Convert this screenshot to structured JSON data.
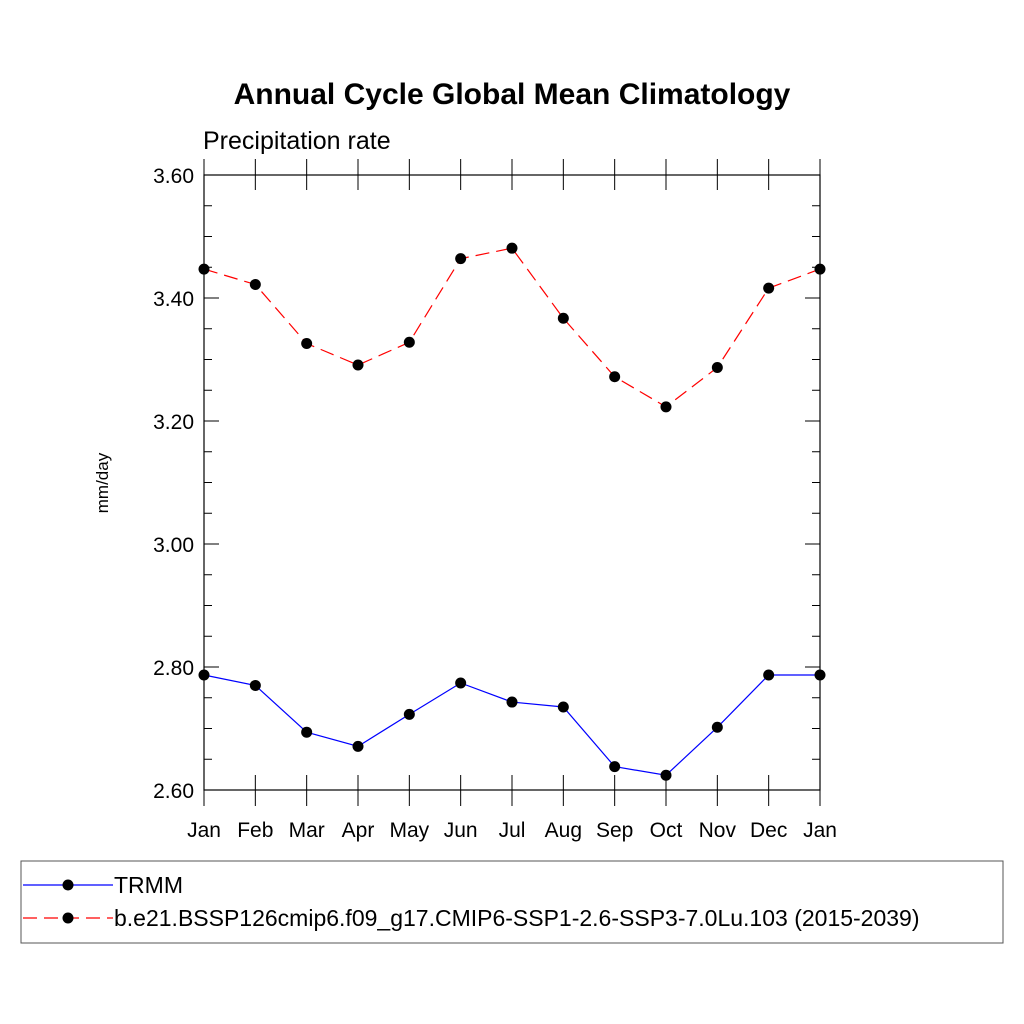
{
  "chart_data": {
    "type": "line",
    "title": "Annual Cycle Global Mean Climatology",
    "subtitle": "Precipitation rate",
    "xlabel": "",
    "ylabel": "mm/day",
    "categories": [
      "Jan",
      "Feb",
      "Mar",
      "Apr",
      "May",
      "Jun",
      "Jul",
      "Aug",
      "Sep",
      "Oct",
      "Nov",
      "Dec",
      "Jan"
    ],
    "ylim": [
      2.6,
      3.6
    ],
    "yticks": [
      "2.60",
      "2.80",
      "3.00",
      "3.20",
      "3.40",
      "3.60"
    ],
    "grid": false,
    "legend_position": "bottom",
    "series": [
      {
        "name": "TRMM",
        "color": "#0000ff",
        "dash": "solid",
        "values": [
          2.787,
          2.77,
          2.694,
          2.671,
          2.723,
          2.774,
          2.743,
          2.735,
          2.638,
          2.624,
          2.702,
          2.787,
          2.787
        ]
      },
      {
        "name": "b.e21.BSSP126cmip6.f09_g17.CMIP6-SSP1-2.6-SSP3-7.0Lu.103 (2015-2039)",
        "color": "#ff0000",
        "dash": "dashed",
        "values": [
          3.447,
          3.422,
          3.326,
          3.291,
          3.328,
          3.464,
          3.481,
          3.367,
          3.272,
          3.223,
          3.287,
          3.416,
          3.447
        ]
      }
    ]
  }
}
